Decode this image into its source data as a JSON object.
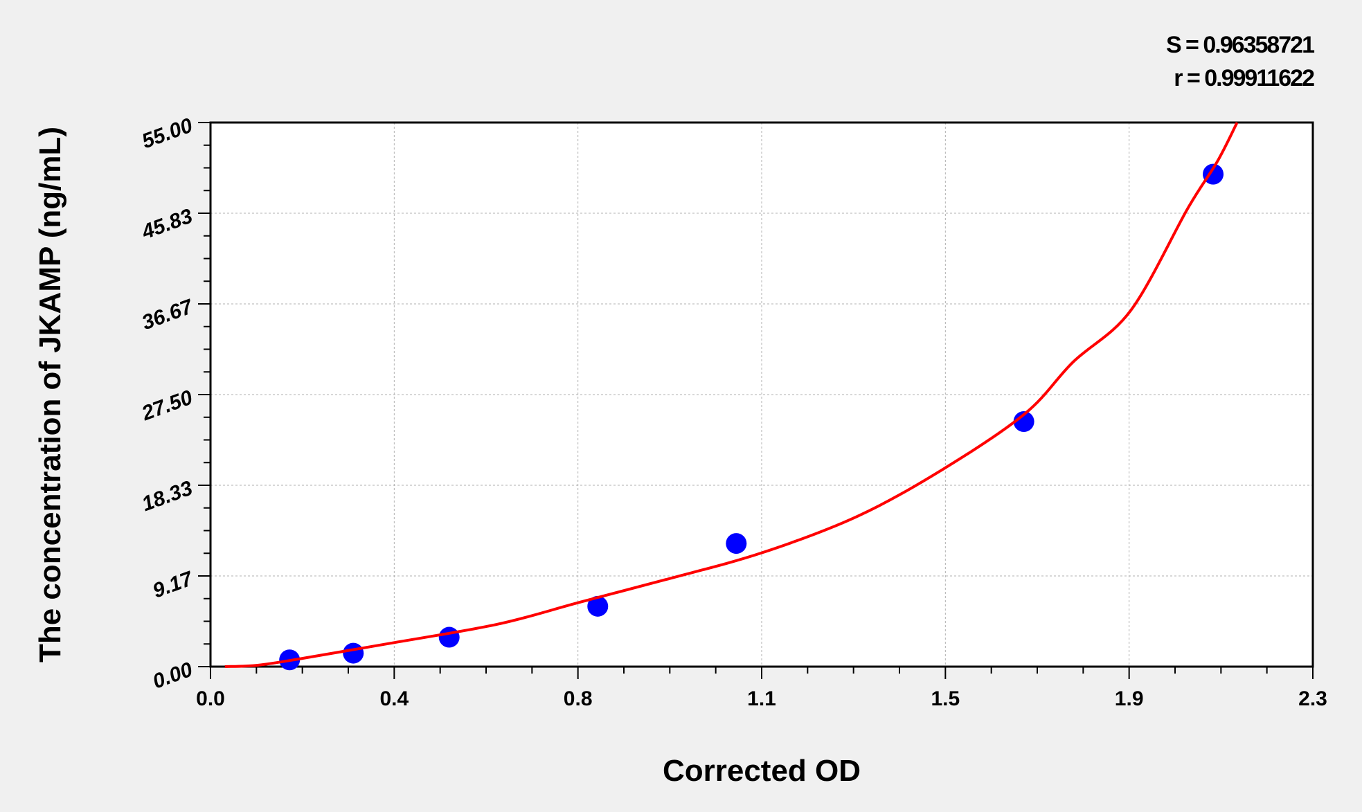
{
  "chart_data": {
    "type": "scatter",
    "title": "",
    "xlabel": "Corrected OD",
    "ylabel": "The concentration of JKAMP (ng/mL)",
    "xlim": [
      0.0,
      2.3
    ],
    "ylim": [
      0.0,
      55.0
    ],
    "x_ticks": [
      "0.0",
      "0.4",
      "0.8",
      "1.1",
      "1.5",
      "1.9",
      "2.3"
    ],
    "y_ticks": [
      "0.00",
      "9.17",
      "18.33",
      "27.50",
      "36.67",
      "45.83",
      "55.00"
    ],
    "grid": true,
    "annotations": [
      "S = 0.96358721",
      "r = 0.99911622"
    ],
    "series": [
      {
        "type": "scatter",
        "color": "#0000ff",
        "x": [
          0.165,
          0.298,
          0.498,
          0.808,
          1.097,
          1.697,
          2.092
        ],
        "y": [
          0.68,
          1.36,
          2.97,
          6.1,
          12.45,
          24.77,
          49.78
        ]
      },
      {
        "type": "line",
        "color": "#ff0000",
        "x": [
          0.03,
          0.1,
          0.2,
          0.38,
          0.6,
          0.77,
          0.95,
          1.15,
          1.35,
          1.53,
          1.7,
          1.8,
          1.92,
          2.04,
          2.1,
          2.142
        ],
        "y": [
          0.0,
          0.15,
          0.9,
          2.4,
          4.3,
          6.5,
          8.8,
          11.5,
          15.2,
          20.0,
          25.6,
          30.8,
          36.0,
          46.4,
          51.0,
          55.0
        ]
      }
    ]
  }
}
